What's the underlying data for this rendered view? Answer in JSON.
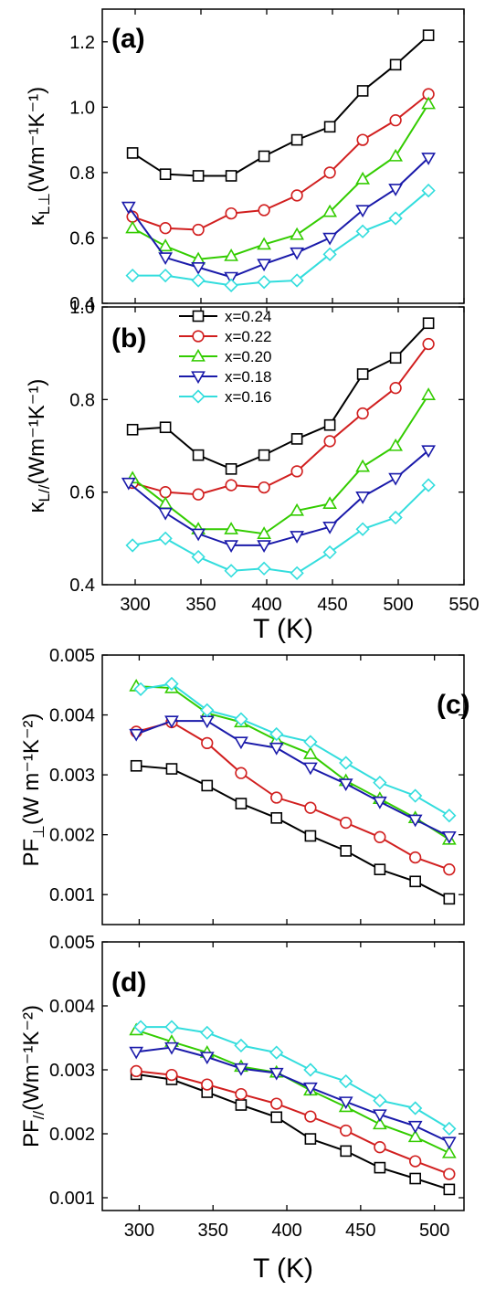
{
  "series_names": [
    "x=0.24",
    "x=0.22",
    "x=0.20",
    "x=0.18",
    "x=0.16"
  ],
  "series_colors": [
    "#000000",
    "#d11f1f",
    "#33cc00",
    "#1a1aaa",
    "#33dddd"
  ],
  "series_markers": [
    "square",
    "circle",
    "triangle-up",
    "triangle-down",
    "diamond"
  ],
  "chart_data": [
    {
      "type": "line",
      "panel_label": "(a)",
      "ylabel_main": "κ",
      "ylabel_sub": "L⊥",
      "ylabel_units": "(Wm⁻¹K⁻¹)",
      "xlabel": "",
      "xlim": [
        275,
        550
      ],
      "ylim": [
        0.4,
        1.3
      ],
      "yticks": [
        0.4,
        0.6,
        0.8,
        1.0,
        1.2
      ],
      "ytick_labels": [
        "0.4",
        "0.6",
        "0.8",
        "1.0",
        "1.2"
      ],
      "xticks": [
        300,
        350,
        400,
        450,
        500,
        550
      ],
      "xtick_labels": [],
      "grid": false,
      "series": [
        {
          "name": "x=0.24",
          "x": [
            298,
            323,
            348,
            373,
            398,
            423,
            448,
            473,
            498,
            523
          ],
          "y": [
            0.86,
            0.795,
            0.79,
            0.79,
            0.85,
            0.9,
            0.94,
            1.05,
            1.13,
            1.22
          ]
        },
        {
          "name": "x=0.22",
          "x": [
            298,
            323,
            348,
            373,
            398,
            423,
            448,
            473,
            498,
            523
          ],
          "y": [
            0.665,
            0.63,
            0.625,
            0.675,
            0.685,
            0.73,
            0.8,
            0.9,
            0.96,
            1.04
          ]
        },
        {
          "name": "x=0.20",
          "x": [
            298,
            323,
            348,
            373,
            398,
            423,
            448,
            473,
            498,
            523
          ],
          "y": [
            0.63,
            0.575,
            0.535,
            0.545,
            0.58,
            0.61,
            0.68,
            0.78,
            0.85,
            1.01
          ]
        },
        {
          "name": "x=0.18",
          "x": [
            295,
            323,
            348,
            373,
            398,
            423,
            448,
            473,
            498,
            523
          ],
          "y": [
            0.695,
            0.54,
            0.51,
            0.48,
            0.52,
            0.555,
            0.6,
            0.685,
            0.75,
            0.845
          ]
        },
        {
          "name": "x=0.16",
          "x": [
            298,
            323,
            348,
            373,
            398,
            423,
            448,
            473,
            498,
            523
          ],
          "y": [
            0.485,
            0.485,
            0.47,
            0.455,
            0.465,
            0.47,
            0.55,
            0.62,
            0.66,
            0.745
          ]
        }
      ]
    },
    {
      "type": "line",
      "panel_label": "(b)",
      "ylabel_main": "κ",
      "ylabel_sub": "L//",
      "ylabel_units": "(Wm⁻¹K⁻¹)",
      "xlabel": "T (K)",
      "xlim": [
        275,
        550
      ],
      "ylim": [
        0.4,
        1.0
      ],
      "yticks": [
        0.4,
        0.6,
        0.8,
        1.0
      ],
      "ytick_labels": [
        "0.4",
        "0.6",
        "0.8",
        "1.0"
      ],
      "xticks": [
        300,
        350,
        400,
        450,
        500,
        550
      ],
      "xtick_labels": [
        "300",
        "350",
        "400",
        "450",
        "500",
        "550"
      ],
      "grid": false,
      "legend_position": "top-center",
      "series": [
        {
          "name": "x=0.24",
          "x": [
            298,
            323,
            348,
            373,
            398,
            423,
            448,
            473,
            498,
            523
          ],
          "y": [
            0.735,
            0.74,
            0.68,
            0.65,
            0.68,
            0.715,
            0.745,
            0.855,
            0.89,
            0.965
          ]
        },
        {
          "name": "x=0.22",
          "x": [
            298,
            323,
            348,
            373,
            398,
            423,
            448,
            473,
            498,
            523
          ],
          "y": [
            0.62,
            0.6,
            0.595,
            0.615,
            0.61,
            0.645,
            0.71,
            0.77,
            0.825,
            0.92
          ]
        },
        {
          "name": "x=0.20",
          "x": [
            298,
            323,
            348,
            373,
            398,
            423,
            448,
            473,
            498,
            523
          ],
          "y": [
            0.63,
            0.575,
            0.52,
            0.52,
            0.51,
            0.56,
            0.575,
            0.655,
            0.7,
            0.81
          ]
        },
        {
          "name": "x=0.18",
          "x": [
            295,
            323,
            348,
            373,
            398,
            423,
            448,
            473,
            498,
            523
          ],
          "y": [
            0.62,
            0.555,
            0.51,
            0.485,
            0.485,
            0.505,
            0.525,
            0.59,
            0.63,
            0.69
          ]
        },
        {
          "name": "x=0.16",
          "x": [
            298,
            323,
            348,
            373,
            398,
            423,
            448,
            473,
            498,
            523
          ],
          "y": [
            0.485,
            0.5,
            0.46,
            0.43,
            0.435,
            0.425,
            0.47,
            0.52,
            0.545,
            0.615
          ]
        }
      ]
    },
    {
      "type": "line",
      "panel_label": "(c)",
      "ylabel_main": "PF",
      "ylabel_sub": "⊥",
      "ylabel_units": "(W m⁻¹K⁻²)",
      "xlabel": "",
      "xlim": [
        275,
        520
      ],
      "ylim": [
        0.0005,
        0.005
      ],
      "yticks": [
        0.001,
        0.002,
        0.003,
        0.004,
        0.005
      ],
      "ytick_labels": [
        "0.001",
        "0.002",
        "0.003",
        "0.004",
        "0.005"
      ],
      "xticks": [
        300,
        350,
        400,
        450,
        500
      ],
      "xtick_labels": [],
      "grid": false,
      "series": [
        {
          "name": "x=0.24",
          "x": [
            298,
            322,
            346,
            369,
            393,
            416,
            440,
            463,
            487,
            510
          ],
          "y": [
            0.00315,
            0.0031,
            0.00282,
            0.00252,
            0.00228,
            0.00198,
            0.00173,
            0.00142,
            0.00122,
            0.00093
          ]
        },
        {
          "name": "x=0.22",
          "x": [
            298,
            322,
            346,
            369,
            393,
            416,
            440,
            463,
            487,
            510
          ],
          "y": [
            0.00372,
            0.00388,
            0.00353,
            0.00303,
            0.00262,
            0.00245,
            0.0022,
            0.00196,
            0.00162,
            0.00142
          ]
        },
        {
          "name": "x=0.20",
          "x": [
            298,
            322,
            346,
            369,
            393,
            416,
            440,
            463,
            487,
            510
          ],
          "y": [
            0.00448,
            0.00445,
            0.00403,
            0.00388,
            0.00358,
            0.00335,
            0.0029,
            0.0026,
            0.00228,
            0.00192
          ]
        },
        {
          "name": "x=0.18",
          "x": [
            298,
            322,
            346,
            369,
            393,
            416,
            440,
            463,
            487,
            510
          ],
          "y": [
            0.00368,
            0.0039,
            0.0039,
            0.00355,
            0.00345,
            0.00312,
            0.00285,
            0.00255,
            0.00225,
            0.00197
          ]
        },
        {
          "name": "x=0.16",
          "x": [
            301,
            322,
            346,
            369,
            393,
            416,
            440,
            463,
            487,
            510
          ],
          "y": [
            0.00443,
            0.00452,
            0.00408,
            0.00393,
            0.00368,
            0.00355,
            0.0032,
            0.00287,
            0.00265,
            0.00232
          ]
        }
      ]
    },
    {
      "type": "line",
      "panel_label": "(d)",
      "ylabel_main": "PF",
      "ylabel_sub": "//",
      "ylabel_units": "(Wm⁻¹K⁻²)",
      "xlabel": "T (K)",
      "xlim": [
        275,
        520
      ],
      "ylim": [
        0.0008,
        0.005
      ],
      "yticks": [
        0.001,
        0.002,
        0.003,
        0.004,
        0.005
      ],
      "ytick_labels": [
        "0.001",
        "0.002",
        "0.003",
        "0.004",
        "0.005"
      ],
      "xticks": [
        300,
        350,
        400,
        450,
        500
      ],
      "xtick_labels": [
        "300",
        "350",
        "400",
        "450",
        "500"
      ],
      "grid": false,
      "series": [
        {
          "name": "x=0.24",
          "x": [
            298,
            322,
            346,
            369,
            393,
            416,
            440,
            463,
            487,
            510
          ],
          "y": [
            0.00293,
            0.00285,
            0.00265,
            0.00245,
            0.00226,
            0.00192,
            0.00173,
            0.00147,
            0.0013,
            0.00113
          ]
        },
        {
          "name": "x=0.22",
          "x": [
            298,
            322,
            346,
            369,
            393,
            416,
            440,
            463,
            487,
            510
          ],
          "y": [
            0.00298,
            0.00292,
            0.00277,
            0.00262,
            0.00247,
            0.00227,
            0.00205,
            0.00179,
            0.00157,
            0.00137
          ]
        },
        {
          "name": "x=0.20",
          "x": [
            298,
            322,
            346,
            369,
            393,
            416,
            440,
            463,
            487,
            510
          ],
          "y": [
            0.00362,
            0.00344,
            0.00327,
            0.00305,
            0.00296,
            0.00268,
            0.00242,
            0.00215,
            0.00195,
            0.0017
          ]
        },
        {
          "name": "x=0.18",
          "x": [
            298,
            322,
            346,
            369,
            393,
            416,
            440,
            463,
            487,
            510
          ],
          "y": [
            0.00328,
            0.00335,
            0.0032,
            0.00302,
            0.00295,
            0.00272,
            0.0025,
            0.0023,
            0.00212,
            0.00187
          ]
        },
        {
          "name": "x=0.16",
          "x": [
            301,
            322,
            346,
            369,
            393,
            416,
            440,
            463,
            487,
            510
          ],
          "y": [
            0.00367,
            0.00367,
            0.00358,
            0.00338,
            0.00327,
            0.003,
            0.00282,
            0.00252,
            0.0024,
            0.00208
          ]
        }
      ]
    }
  ]
}
